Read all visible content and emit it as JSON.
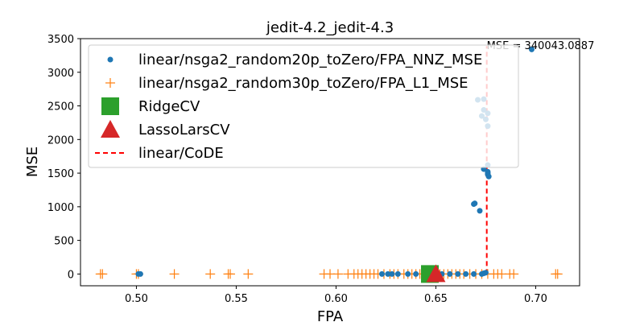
{
  "chart_data": {
    "type": "scatter",
    "title": "jedit-4.2_jedit-4.3",
    "xlabel": "FPA",
    "ylabel": "MSE",
    "xlim": [
      0.472,
      0.722
    ],
    "ylim": [
      -175,
      3500
    ],
    "xticks": [
      {
        "value": 0.5,
        "label": "0.50"
      },
      {
        "value": 0.55,
        "label": "0.55"
      },
      {
        "value": 0.6,
        "label": "0.60"
      },
      {
        "value": 0.65,
        "label": "0.65"
      },
      {
        "value": 0.7,
        "label": "0.70"
      }
    ],
    "yticks": [
      {
        "value": 0,
        "label": "0"
      },
      {
        "value": 500,
        "label": "500"
      },
      {
        "value": 1000,
        "label": "1000"
      },
      {
        "value": 1500,
        "label": "1500"
      },
      {
        "value": 2000,
        "label": "2000"
      },
      {
        "value": 2500,
        "label": "2500"
      },
      {
        "value": 3000,
        "label": "3000"
      },
      {
        "value": 3500,
        "label": "3500"
      }
    ],
    "grid": false,
    "legend_position": "top-left",
    "colors": {
      "nnz": "#1f77b4",
      "l1": "#ff7f0e",
      "ridge": "#2ca02c",
      "lasso": "#d62728",
      "code": "#ff0000"
    },
    "annotation": {
      "text": "MSE = 340043.0887",
      "x": 0.6755,
      "y": 3390
    },
    "series": [
      {
        "name": "linear/nsga2_random20p_toZero/FPA_NNZ_MSE",
        "marker": "dot",
        "points": [
          [
            0.501,
            0
          ],
          [
            0.502,
            0
          ],
          [
            0.623,
            0
          ],
          [
            0.626,
            0
          ],
          [
            0.628,
            0
          ],
          [
            0.631,
            0
          ],
          [
            0.636,
            0
          ],
          [
            0.64,
            0
          ],
          [
            0.644,
            0
          ],
          [
            0.647,
            0
          ],
          [
            0.65,
            0
          ],
          [
            0.653,
            0
          ],
          [
            0.657,
            0
          ],
          [
            0.661,
            0
          ],
          [
            0.665,
            0
          ],
          [
            0.669,
            0
          ],
          [
            0.673,
            0
          ],
          [
            0.674,
            10
          ],
          [
            0.675,
            20
          ],
          [
            0.669,
            1040
          ],
          [
            0.6695,
            1050
          ],
          [
            0.672,
            940
          ],
          [
            0.674,
            1560
          ],
          [
            0.676,
            1500
          ],
          [
            0.676,
            1480
          ],
          [
            0.676,
            1520
          ],
          [
            0.6765,
            1450
          ],
          [
            0.698,
            3340
          ],
          [
            0.671,
            2590
          ],
          [
            0.674,
            2600
          ],
          [
            0.673,
            2350
          ],
          [
            0.675,
            2300
          ],
          [
            0.676,
            2390
          ],
          [
            0.674,
            2440
          ],
          [
            0.676,
            2200
          ],
          [
            0.676,
            1620
          ]
        ]
      },
      {
        "name": "linear/nsga2_random30p_toZero/FPA_L1_MSE",
        "marker": "plus",
        "points": [
          [
            0.482,
            0
          ],
          [
            0.483,
            0
          ],
          [
            0.5,
            0
          ],
          [
            0.501,
            0
          ],
          [
            0.519,
            0
          ],
          [
            0.537,
            0
          ],
          [
            0.546,
            0
          ],
          [
            0.547,
            0
          ],
          [
            0.556,
            0
          ],
          [
            0.594,
            0
          ],
          [
            0.597,
            0
          ],
          [
            0.601,
            0
          ],
          [
            0.606,
            0
          ],
          [
            0.609,
            0
          ],
          [
            0.611,
            0
          ],
          [
            0.613,
            0
          ],
          [
            0.615,
            0
          ],
          [
            0.617,
            0
          ],
          [
            0.619,
            0
          ],
          [
            0.621,
            0
          ],
          [
            0.624,
            0
          ],
          [
            0.627,
            0
          ],
          [
            0.629,
            0
          ],
          [
            0.631,
            0
          ],
          [
            0.634,
            0
          ],
          [
            0.636,
            0
          ],
          [
            0.638,
            0
          ],
          [
            0.64,
            0
          ],
          [
            0.642,
            0
          ],
          [
            0.644,
            0
          ],
          [
            0.646,
            0
          ],
          [
            0.648,
            0
          ],
          [
            0.65,
            0
          ],
          [
            0.652,
            0
          ],
          [
            0.654,
            0
          ],
          [
            0.656,
            0
          ],
          [
            0.658,
            0
          ],
          [
            0.66,
            0
          ],
          [
            0.662,
            0
          ],
          [
            0.664,
            0
          ],
          [
            0.667,
            0
          ],
          [
            0.67,
            0
          ],
          [
            0.673,
            0
          ],
          [
            0.676,
            0
          ],
          [
            0.679,
            0
          ],
          [
            0.681,
            0
          ],
          [
            0.683,
            0
          ],
          [
            0.687,
            0
          ],
          [
            0.689,
            0
          ],
          [
            0.71,
            0
          ],
          [
            0.711,
            0
          ]
        ]
      },
      {
        "name": "RidgeCV",
        "marker": "square",
        "points": [
          [
            0.647,
            0
          ]
        ]
      },
      {
        "name": "LassoLarsCV",
        "marker": "triangle",
        "points": [
          [
            0.65,
            0
          ]
        ]
      },
      {
        "name": "linear/CoDE",
        "marker": "dashed-line",
        "points": [
          [
            0.6755,
            0
          ],
          [
            0.6755,
            3390
          ]
        ]
      }
    ]
  }
}
